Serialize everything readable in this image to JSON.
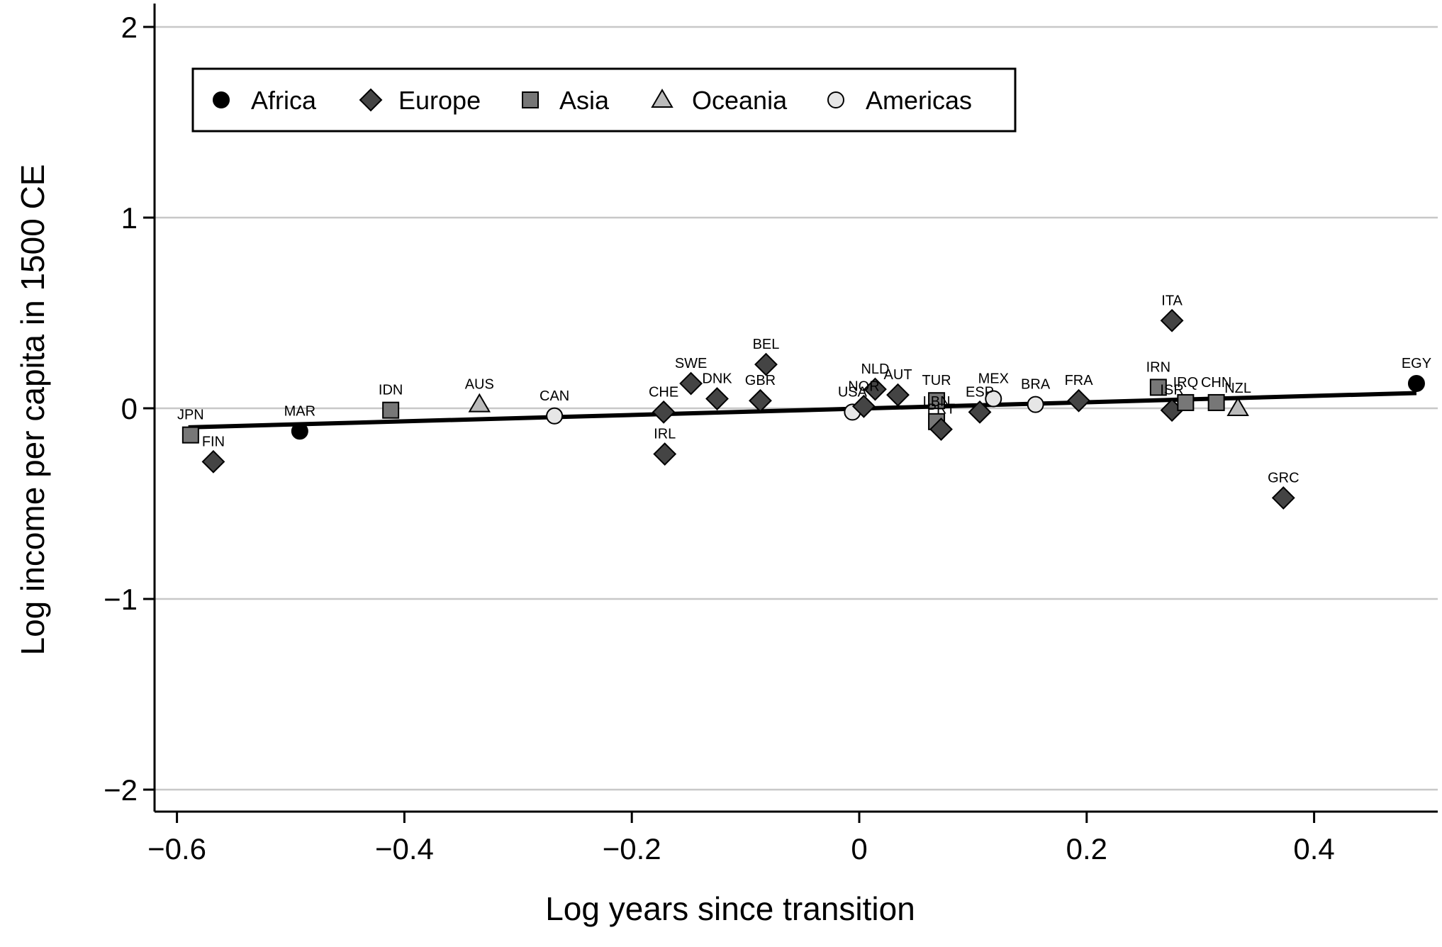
{
  "chart_data": {
    "type": "scatter",
    "title": "",
    "xlabel": "Log years since transition",
    "ylabel": "Log income per capita in 1500 CE",
    "xlim": [
      -0.63,
      0.51
    ],
    "ylim": [
      -2.1,
      2.1
    ],
    "x_ticks": [
      -0.6,
      -0.4,
      -0.2,
      0,
      0.2,
      0.4
    ],
    "x_tick_labels": [
      "−0.6",
      "−0.4",
      "−0.2",
      "0",
      "0.2",
      "0.4"
    ],
    "y_ticks": [
      2,
      1,
      0,
      -1,
      -2
    ],
    "y_tick_labels": [
      "2",
      "1",
      "0",
      "−1",
      "−2"
    ],
    "grid": "horizontal",
    "legend_position": "top-left",
    "fit_line": {
      "x": [
        -0.59,
        0.49
      ],
      "y": [
        -0.1,
        0.08
      ]
    },
    "groups": [
      {
        "name": "Africa",
        "marker": "circle",
        "fill": "#000000"
      },
      {
        "name": "Europe",
        "marker": "diamond",
        "fill": "#444444"
      },
      {
        "name": "Asia",
        "marker": "square",
        "fill": "#777777"
      },
      {
        "name": "Oceania",
        "marker": "triangle",
        "fill": "#bbbbbb"
      },
      {
        "name": "Americas",
        "marker": "circle",
        "fill": "#e6e6e6"
      }
    ],
    "points": [
      {
        "label": "JPN",
        "group": "Asia",
        "x": -0.588,
        "y": -0.14
      },
      {
        "label": "FIN",
        "group": "Europe",
        "x": -0.568,
        "y": -0.28
      },
      {
        "label": "MAR",
        "group": "Africa",
        "x": -0.492,
        "y": -0.12
      },
      {
        "label": "IDN",
        "group": "Asia",
        "x": -0.412,
        "y": -0.01
      },
      {
        "label": "AUS",
        "group": "Oceania",
        "x": -0.334,
        "y": 0.02
      },
      {
        "label": "CAN",
        "group": "Americas",
        "x": -0.268,
        "y": -0.04
      },
      {
        "label": "CHE",
        "group": "Europe",
        "x": -0.172,
        "y": -0.02
      },
      {
        "label": "IRL",
        "group": "Europe",
        "x": -0.171,
        "y": -0.24
      },
      {
        "label": "SWE",
        "group": "Europe",
        "x": -0.148,
        "y": 0.13
      },
      {
        "label": "DNK",
        "group": "Europe",
        "x": -0.125,
        "y": 0.05
      },
      {
        "label": "GBR",
        "group": "Europe",
        "x": -0.087,
        "y": 0.04
      },
      {
        "label": "BEL",
        "group": "Europe",
        "x": -0.082,
        "y": 0.23
      },
      {
        "label": "USA",
        "group": "Americas",
        "x": -0.006,
        "y": -0.02
      },
      {
        "label": "NOR",
        "group": "Europe",
        "x": 0.004,
        "y": 0.01
      },
      {
        "label": "NLD",
        "group": "Europe",
        "x": 0.014,
        "y": 0.1
      },
      {
        "label": "AUT",
        "group": "Europe",
        "x": 0.034,
        "y": 0.07
      },
      {
        "label": "TUR",
        "group": "Asia",
        "x": 0.068,
        "y": 0.04
      },
      {
        "label": "LBN",
        "group": "Asia",
        "x": 0.068,
        "y": -0.07
      },
      {
        "label": "PRT",
        "group": "Europe",
        "x": 0.072,
        "y": -0.11
      },
      {
        "label": "ESP",
        "group": "Europe",
        "x": 0.106,
        "y": -0.02
      },
      {
        "label": "MEX",
        "group": "Americas",
        "x": 0.118,
        "y": 0.05
      },
      {
        "label": "BRA",
        "group": "Americas",
        "x": 0.155,
        "y": 0.02
      },
      {
        "label": "FRA",
        "group": "Europe",
        "x": 0.193,
        "y": 0.04
      },
      {
        "label": "IRN",
        "group": "Asia",
        "x": 0.263,
        "y": 0.11
      },
      {
        "label": "ISR",
        "group": "Europe",
        "x": 0.275,
        "y": -0.01
      },
      {
        "label": "ITA",
        "group": "Europe",
        "x": 0.275,
        "y": 0.46
      },
      {
        "label": "IRQ",
        "group": "Asia",
        "x": 0.287,
        "y": 0.03
      },
      {
        "label": "CHN",
        "group": "Asia",
        "x": 0.314,
        "y": 0.03
      },
      {
        "label": "NZL",
        "group": "Oceania",
        "x": 0.333,
        "y": 0.0
      },
      {
        "label": "GRC",
        "group": "Europe",
        "x": 0.373,
        "y": -0.47
      },
      {
        "label": "EGY",
        "group": "Africa",
        "x": 0.49,
        "y": 0.13
      }
    ]
  }
}
